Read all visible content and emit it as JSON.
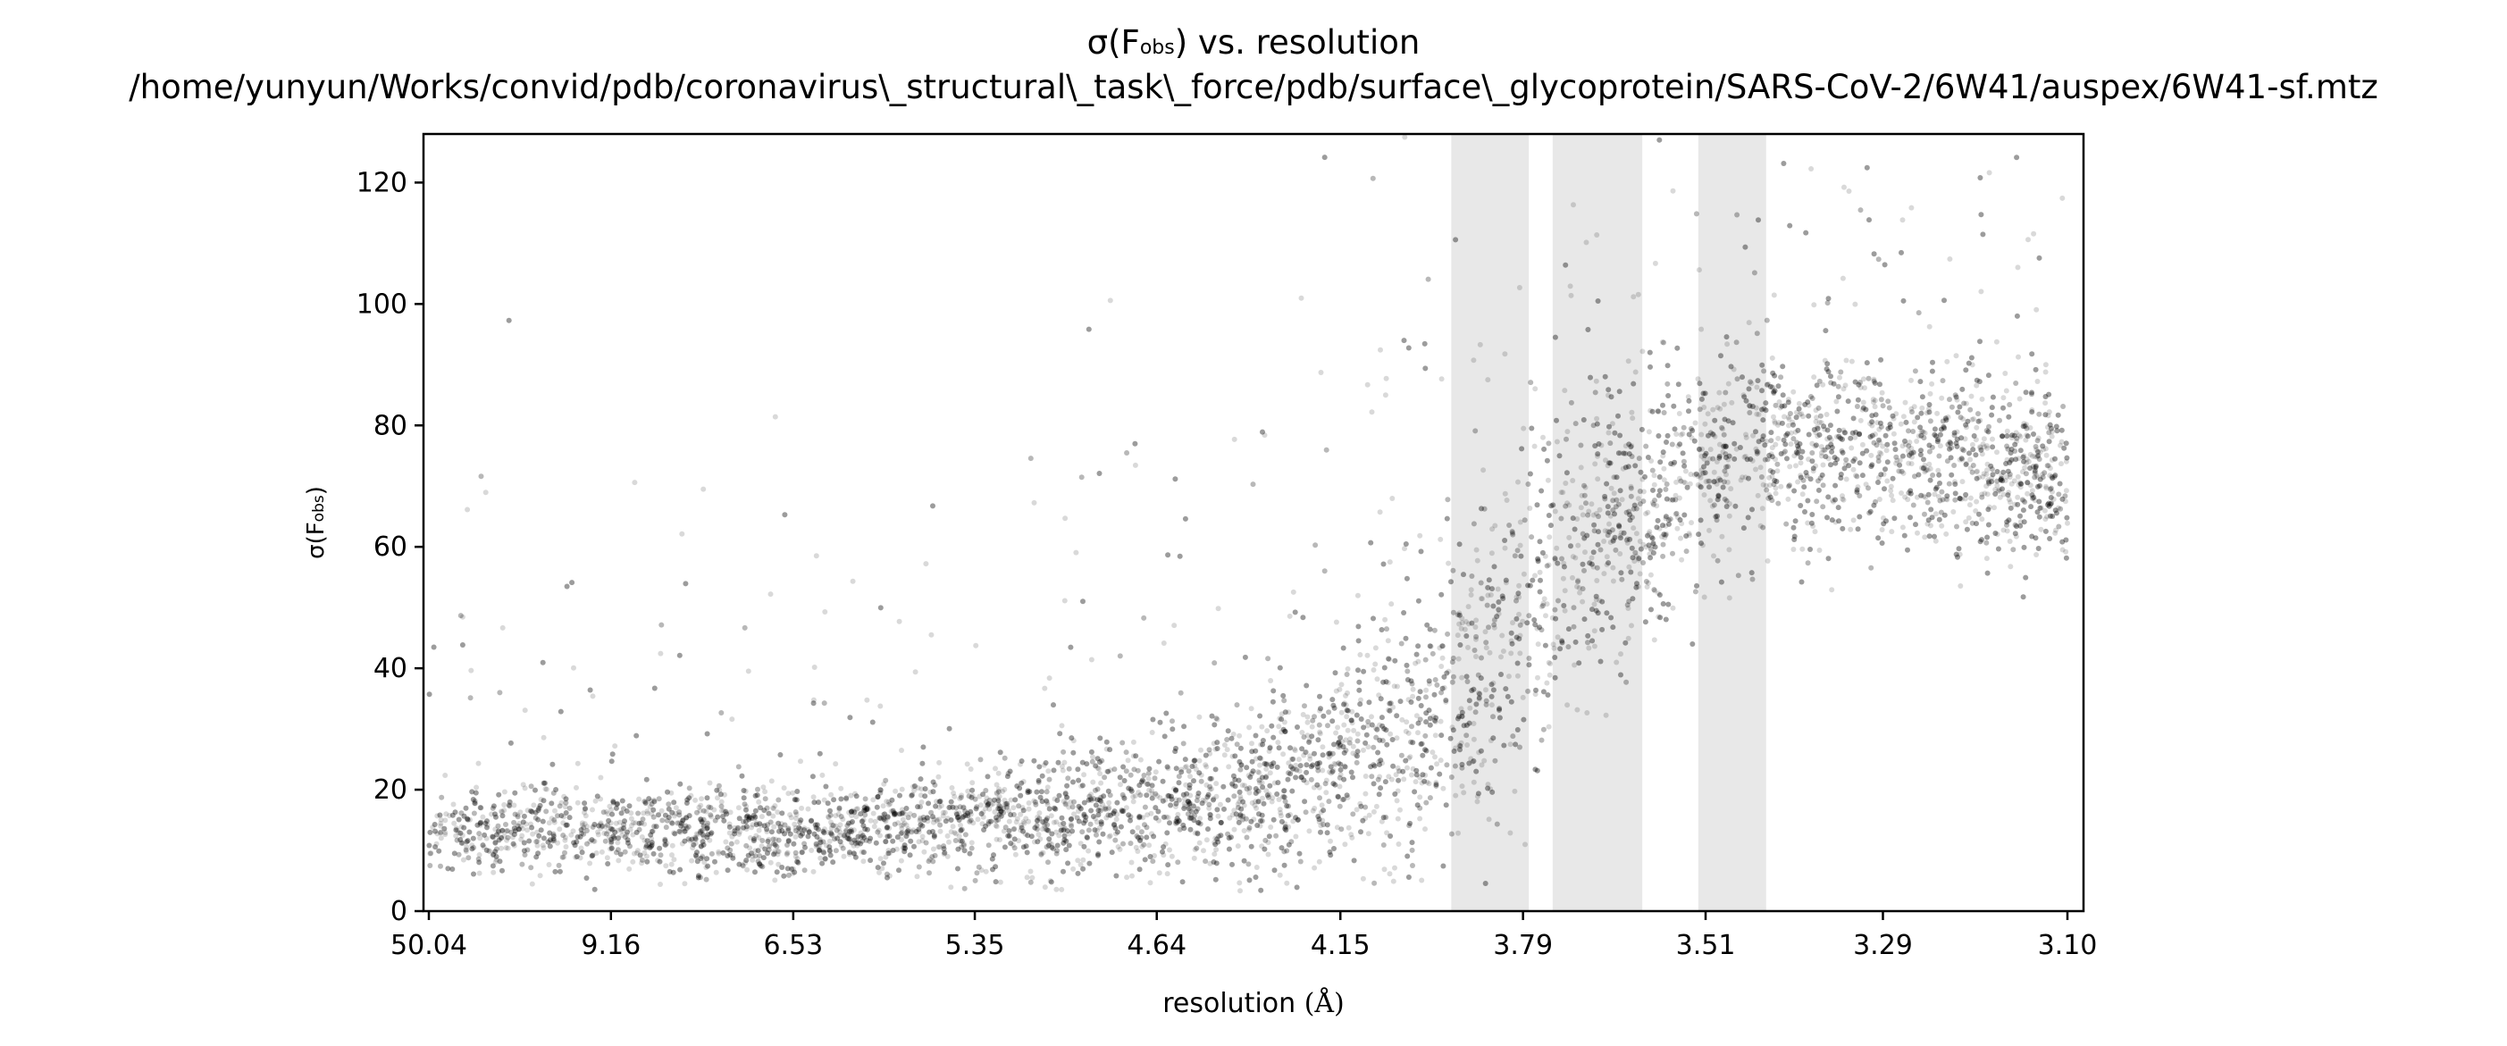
{
  "chart_data": {
    "type": "scatter",
    "title_line1": "σ(F) vs. resolution",
    "title_line1_parts": {
      "prefix": "σ(F",
      "subscript": "obs",
      "suffix": ") vs. resolution"
    },
    "title_line2": "/home/yunyun/Works/convid/pdb/coronavirus\\_structural\\_task\\_force/pdb/surface\\_glycoprotein/SARS-CoV-2/6W41/auspex/6W41-sf.mtz",
    "xlabel": "resolution (Å)",
    "xlabel_parts": {
      "main": "resolution ",
      "unit": "(Å)"
    },
    "ylabel": "σ(Fobs)",
    "ylabel_parts": {
      "prefix": "σ(F",
      "subscript": "obs",
      "suffix": ")"
    },
    "x_scale": "reciprocal-squared resolution (1/d²)",
    "x_tick_labels": [
      "50.04",
      "9.16",
      "6.53",
      "5.35",
      "4.64",
      "4.15",
      "3.79",
      "3.51",
      "3.29",
      "3.10"
    ],
    "x_range_angstrom": [
      50.04,
      3.1
    ],
    "y_ticks": [
      0,
      20,
      40,
      60,
      80,
      100,
      120
    ],
    "ylim": [
      0,
      128
    ],
    "grid": false,
    "legend": "none",
    "point_color": "#000000",
    "point_alpha": 0.15,
    "shaded_color": "#e8e8e8",
    "shaded_resolution_bands_angstrom": [
      [
        3.92,
        3.78
      ],
      [
        3.74,
        3.6
      ],
      [
        3.52,
        3.43
      ]
    ],
    "trend_series": {
      "resolution_angstrom": [
        50.04,
        12.0,
        9.16,
        7.5,
        6.53,
        5.8,
        5.35,
        4.9,
        4.64,
        4.3,
        4.15,
        3.95,
        3.85,
        3.79,
        3.7,
        3.6,
        3.51,
        3.45,
        3.4,
        3.29,
        3.2,
        3.1
      ],
      "median_sigma": [
        12,
        14,
        13,
        13,
        13,
        14,
        15,
        16,
        17,
        20,
        23,
        30,
        40,
        52,
        60,
        66,
        73,
        76,
        76,
        75,
        74,
        71
      ],
      "spread_sigma": [
        5,
        6,
        6,
        6,
        6,
        6,
        7,
        8,
        9,
        11,
        14,
        20,
        22,
        22,
        20,
        18,
        15,
        14,
        13,
        12,
        12,
        12
      ]
    },
    "outlier_fraction": 0.08
  }
}
